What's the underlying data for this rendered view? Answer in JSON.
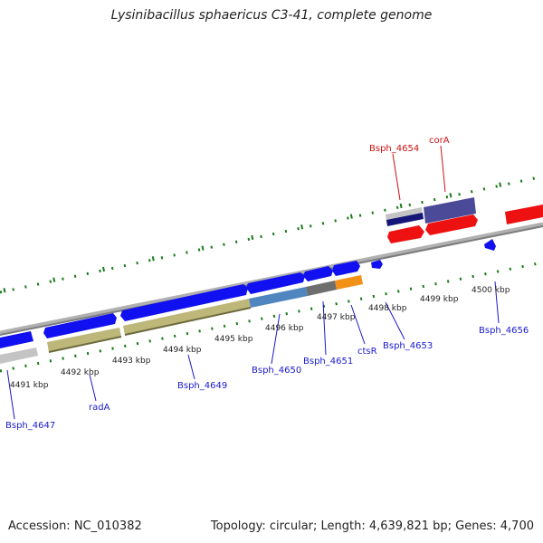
{
  "header": {
    "title": "Lysinibacillus sphaericus C3-41, complete genome"
  },
  "footer": {
    "accession": "Accession: NC_010382",
    "summary": "Topology: circular; Length: 4,639,821 bp; Genes: 4,700"
  },
  "colors": {
    "forward_cds": "#1010f0",
    "reverse_cds": "#ee1111",
    "backbone": "#8a8a8a",
    "tick": "#1a7a1a",
    "forward_label": "#1a1acc",
    "reverse_label": "#cc1111",
    "cog_khaki": "#bdb77a",
    "cog_steelblue": "#4f86c0",
    "cog_gray": "#6e6e6e",
    "cog_orange": "#f39018",
    "cog_silver": "#c4c4c4",
    "cog_navy": "#16167a",
    "cog_slate": "#4a4a98"
  },
  "scale": {
    "unit": "kbp",
    "tick_labels": [
      "4491 kbp",
      "4492 kbp",
      "4493 kbp",
      "4494 kbp",
      "4495 kbp",
      "4496 kbp",
      "4497 kbp",
      "4498 kbp",
      "4499 kbp",
      "4500 kbp"
    ]
  },
  "genes": [
    {
      "name": "Bsph_4647",
      "strand": "forward"
    },
    {
      "name": "radA",
      "strand": "forward"
    },
    {
      "name": "Bsph_4649",
      "strand": "forward"
    },
    {
      "name": "Bsph_4650",
      "strand": "forward"
    },
    {
      "name": "Bsph_4651",
      "strand": "forward"
    },
    {
      "name": "ctsR",
      "strand": "forward"
    },
    {
      "name": "Bsph_4653",
      "strand": "forward"
    },
    {
      "name": "Bsph_4654",
      "strand": "reverse"
    },
    {
      "name": "corA",
      "strand": "reverse"
    },
    {
      "name": "Bsph_4656",
      "strand": "forward"
    }
  ]
}
